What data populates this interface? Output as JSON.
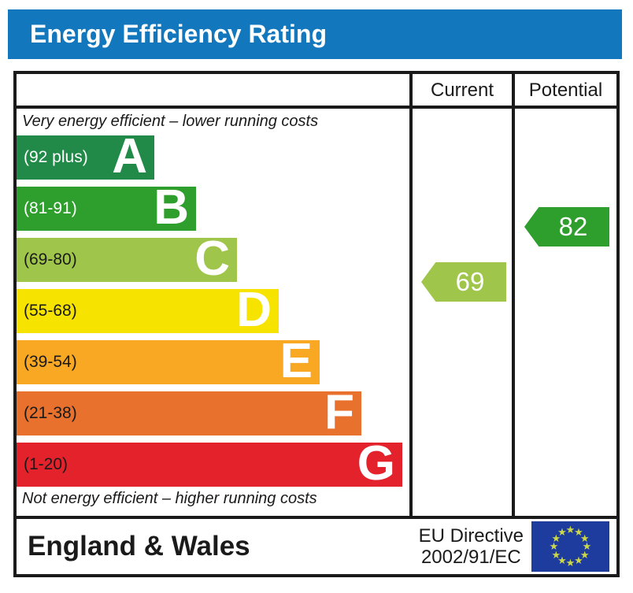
{
  "title": "Energy Efficiency Rating",
  "table": {
    "columns": {
      "current": "Current",
      "potential": "Potential"
    },
    "caption_top": "Very energy efficient – lower running costs",
    "caption_bottom": "Not energy efficient – higher running costs",
    "bands": [
      {
        "range": "(92 plus)",
        "letter": "A",
        "min": 92,
        "max": 100,
        "color": "#228a48",
        "text_color": "#ffffff"
      },
      {
        "range": "(81-91)",
        "letter": "B",
        "min": 81,
        "max": 91,
        "color": "#2e9e2d",
        "text_color": "#ffffff"
      },
      {
        "range": "(69-80)",
        "letter": "C",
        "min": 69,
        "max": 80,
        "color": "#9fc64a",
        "text_color": "#1a1a1a"
      },
      {
        "range": "(55-68)",
        "letter": "D",
        "min": 55,
        "max": 68,
        "color": "#f7e300",
        "text_color": "#1a1a1a"
      },
      {
        "range": "(39-54)",
        "letter": "E",
        "min": 39,
        "max": 54,
        "color": "#f8a823",
        "text_color": "#1a1a1a"
      },
      {
        "range": "(21-38)",
        "letter": "F",
        "min": 21,
        "max": 38,
        "color": "#e8712d",
        "text_color": "#1a1a1a"
      },
      {
        "range": "(1-20)",
        "letter": "G",
        "min": 1,
        "max": 20,
        "color": "#e3222c",
        "text_color": "#1a1a1a"
      }
    ],
    "current": {
      "value": "69",
      "band": "C"
    },
    "potential": {
      "value": "82",
      "band": "B"
    }
  },
  "footer": {
    "region": "England & Wales",
    "directive_line1": "EU Directive",
    "directive_line2": "2002/91/EC"
  },
  "colors": {
    "title_bar": "#1377bd",
    "border": "#1a1a1a",
    "eu_flag_blue": "#1e3c9e",
    "eu_star": "#cdd74a"
  },
  "chart_data": {
    "type": "bar",
    "title": "Energy Efficiency Rating",
    "categories": [
      "A",
      "B",
      "C",
      "D",
      "E",
      "F",
      "G"
    ],
    "band_ranges": [
      "92 plus",
      "81-91",
      "69-80",
      "55-68",
      "39-54",
      "21-38",
      "1-20"
    ],
    "band_colors": [
      "#228a48",
      "#2e9e2d",
      "#9fc64a",
      "#f7e300",
      "#f8a823",
      "#e8712d",
      "#e3222c"
    ],
    "value_scale": [
      1,
      100
    ],
    "series": [
      {
        "name": "Current",
        "values": [
          69
        ],
        "band": "C"
      },
      {
        "name": "Potential",
        "values": [
          82
        ],
        "band": "B"
      }
    ],
    "annotations": [
      "Very energy efficient – lower running costs",
      "Not energy efficient – higher running costs"
    ],
    "footer": [
      "England & Wales",
      "EU Directive 2002/91/EC"
    ],
    "legend_position": "none",
    "grid": false
  }
}
